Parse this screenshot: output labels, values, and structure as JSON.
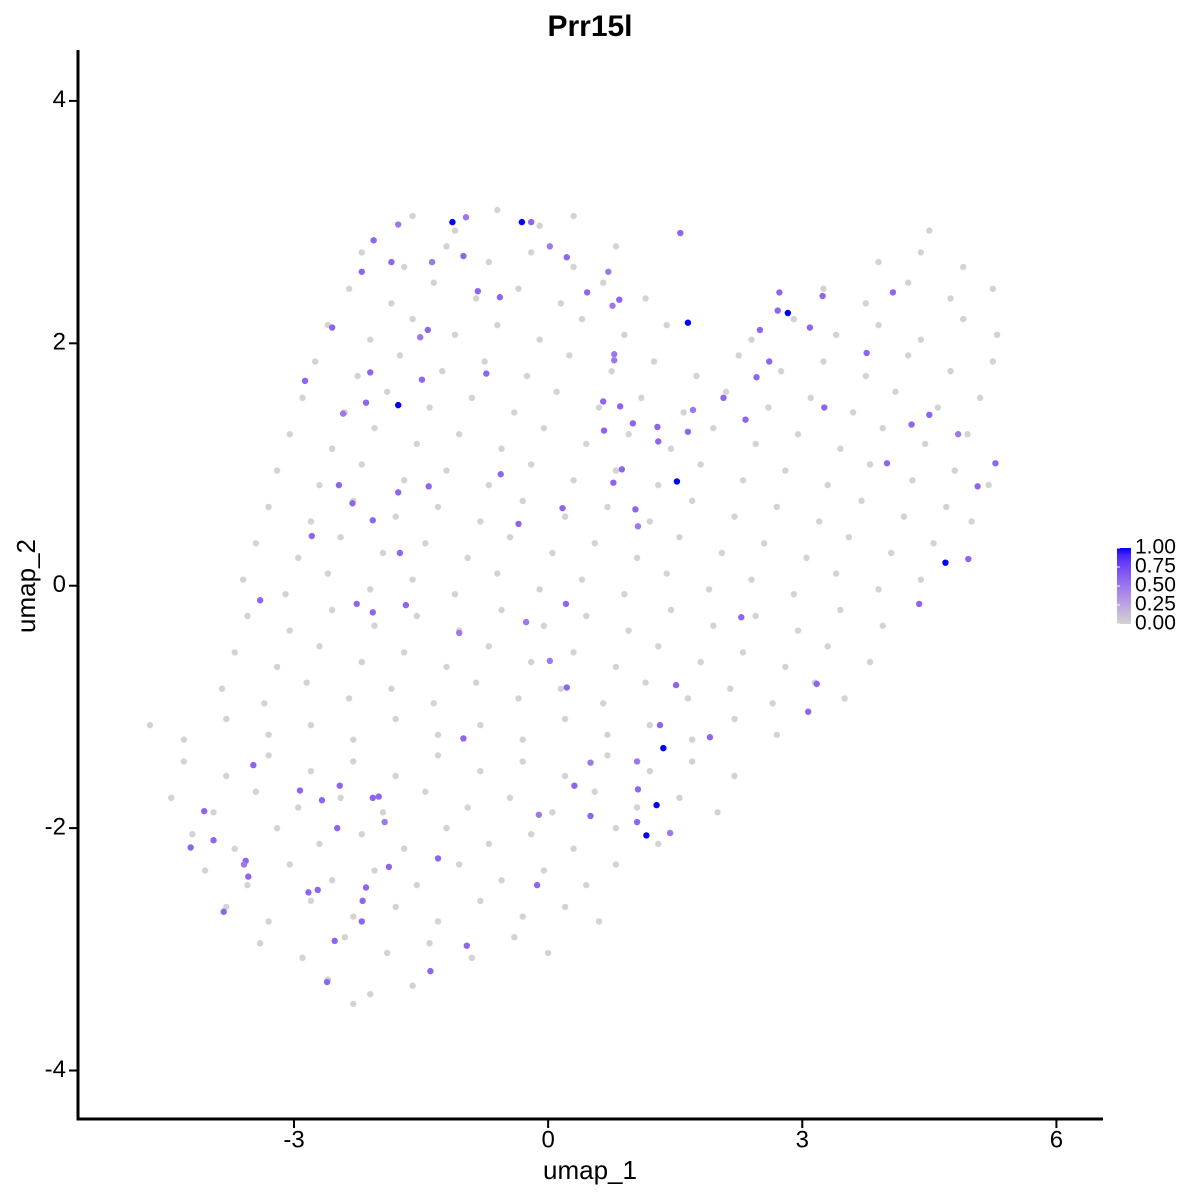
{
  "chart_data": {
    "type": "scatter",
    "title": "Prr15l",
    "x_label": "umap_1",
    "y_label": "umap_2",
    "xlim": [
      -5.55,
      6.55
    ],
    "ylim": [
      -4.4,
      4.42
    ],
    "xticks": [
      -3,
      0,
      3,
      6
    ],
    "yticks": [
      -4,
      -2,
      0,
      2,
      4
    ],
    "grid": false,
    "color_low": "#d3d3d3",
    "color_high": "#0000ff",
    "color_lim": [
      0,
      1
    ],
    "color_ticks": [
      {
        "value": 0,
        "label": "0.00"
      },
      {
        "value": 0.25,
        "label": "0.25"
      },
      {
        "value": 0.5,
        "label": "0.50"
      },
      {
        "value": 0.75,
        "label": "0.75"
      },
      {
        "value": 1,
        "label": "1.00"
      }
    ],
    "x": [
      -1.6,
      -1.1,
      -0.6,
      -0.1,
      0.3,
      4.5,
      -2.2,
      -1.7,
      -1.2,
      -0.7,
      -0.2,
      0.3,
      0.8,
      3.9,
      4.4,
      4.9,
      -2.35,
      -1.85,
      -1.35,
      -0.85,
      -0.35,
      0.15,
      0.65,
      1.15,
      3.25,
      3.75,
      4.25,
      4.75,
      5.25,
      -2.6,
      -2.1,
      -1.6,
      -1.1,
      -0.6,
      -0.1,
      0.4,
      0.9,
      1.4,
      2.4,
      2.9,
      3.4,
      3.9,
      4.4,
      4.9,
      5.3,
      -2.75,
      -2.25,
      -1.75,
      -1.25,
      -0.75,
      -0.25,
      0.25,
      0.75,
      1.25,
      1.75,
      2.25,
      2.75,
      3.25,
      3.75,
      4.25,
      4.75,
      5.25,
      -2.9,
      -2.4,
      -1.9,
      -1.4,
      -0.9,
      -0.4,
      0.1,
      0.6,
      1.1,
      1.6,
      2.1,
      2.6,
      3.1,
      3.6,
      4.1,
      4.6,
      5.1,
      -3.05,
      -2.55,
      -2.05,
      -1.55,
      -1.05,
      -0.55,
      -0.05,
      0.45,
      0.95,
      1.45,
      1.95,
      2.45,
      2.95,
      3.45,
      3.95,
      4.45,
      4.95,
      -3.2,
      -2.7,
      -2.2,
      -1.7,
      -1.2,
      -0.7,
      -0.2,
      0.3,
      0.8,
      1.3,
      1.8,
      2.3,
      2.8,
      3.3,
      3.8,
      4.3,
      4.8,
      5.2,
      -3.3,
      -2.8,
      -2.3,
      -1.8,
      -1.3,
      -0.8,
      -0.3,
      0.2,
      0.7,
      1.2,
      1.7,
      2.2,
      2.7,
      3.2,
      3.7,
      4.2,
      4.7,
      5.0,
      -3.45,
      -2.95,
      -2.45,
      -1.95,
      -1.45,
      -0.95,
      -0.45,
      0.05,
      0.55,
      1.05,
      1.55,
      2.05,
      2.55,
      3.05,
      3.55,
      4.05,
      4.55,
      -3.6,
      -3.1,
      -2.6,
      -2.1,
      -1.6,
      -1.1,
      -0.6,
      -0.1,
      0.4,
      0.9,
      1.4,
      1.9,
      2.4,
      2.9,
      3.4,
      3.9,
      4.4,
      -3.55,
      -3.05,
      -2.55,
      -2.05,
      -1.55,
      -1.05,
      -0.55,
      -0.05,
      0.45,
      0.95,
      1.45,
      1.95,
      2.45,
      2.95,
      3.45,
      3.95,
      -3.7,
      -3.2,
      -2.7,
      -2.2,
      -1.7,
      -1.2,
      -0.7,
      -0.2,
      0.3,
      0.8,
      1.3,
      1.8,
      2.3,
      2.8,
      3.3,
      3.8,
      -3.85,
      -3.35,
      -2.85,
      -2.35,
      -1.85,
      -1.35,
      -0.85,
      -0.35,
      0.15,
      0.65,
      1.15,
      1.65,
      2.15,
      2.65,
      3.15,
      3.5,
      -4.7,
      -4.3,
      -3.8,
      -3.3,
      -2.8,
      -2.3,
      -1.8,
      -1.3,
      -0.8,
      -0.3,
      0.2,
      0.7,
      1.2,
      1.7,
      2.2,
      2.7,
      -4.3,
      -3.8,
      -3.3,
      -2.8,
      -2.3,
      -1.8,
      -1.3,
      -0.8,
      -0.3,
      0.2,
      0.7,
      1.2,
      1.7,
      2.2,
      -4.45,
      -3.95,
      -3.45,
      -2.95,
      -2.45,
      -1.95,
      -1.45,
      -0.95,
      -0.45,
      0.05,
      0.55,
      1.05,
      1.55,
      2.0,
      -4.2,
      -3.7,
      -3.2,
      -2.7,
      -2.2,
      -1.7,
      -1.2,
      -0.7,
      -0.2,
      0.3,
      0.8,
      1.3,
      -4.05,
      -3.55,
      -3.05,
      -2.55,
      -2.05,
      -1.55,
      -1.05,
      -0.55,
      -0.05,
      0.45,
      0.8,
      -3.8,
      -3.3,
      -2.8,
      -2.3,
      -1.8,
      -1.3,
      -0.8,
      -0.3,
      0.2,
      0.6,
      -3.4,
      -2.9,
      -2.4,
      -1.9,
      -1.4,
      -0.9,
      -0.4,
      0.0,
      -2.6,
      -2.3,
      -2.1,
      -1.6,
      -1.13,
      -0.31,
      -0.2,
      -0.97,
      -1.77,
      -2.06,
      1.56,
      0.02,
      0.22,
      -1.0,
      -1.37,
      -1.85,
      -2.2,
      0.71,
      -0.83,
      -0.57,
      0.46,
      0.84,
      0.76,
      1.65,
      2.83,
      2.73,
      2.71,
      3.24,
      3.09,
      2.5,
      4.07,
      -2.55,
      -1.42,
      -1.51,
      0.78,
      0.78,
      -2.87,
      -2.1,
      -1.49,
      -0.73,
      -1.77,
      -2.15,
      -2.42,
      0.65,
      0.85,
      0.66,
      1.0,
      1.29,
      1.3,
      1.65,
      1.71,
      2.07,
      2.46,
      2.61,
      2.33,
      3.26,
      3.76,
      4.5,
      4.29,
      4.84,
      4.0,
      5.28,
      5.07,
      1.52,
      0.87,
      0.77,
      -0.56,
      1.03,
      1.06,
      0.17,
      -0.35,
      -2.47,
      -1.41,
      -1.77,
      -2.31,
      -2.07,
      -2.79,
      -1.75,
      4.69,
      4.96,
      4.38,
      -3.4,
      -2.26,
      -1.68,
      -2.07,
      0.21,
      2.28,
      -0.26,
      -1.05,
      0.02,
      0.22,
      1.51,
      3.17,
      3.07,
      1.32,
      -1.0,
      1.36,
      1.91,
      -3.48,
      1.05,
      0.5,
      0.31,
      -2.46,
      -2.93,
      1.06,
      1.28,
      -2.07,
      -2.0,
      -2.67,
      -4.06,
      -0.11,
      0.5,
      -1.93,
      1.05,
      1.44,
      -2.49,
      1.16,
      -3.95,
      -4.22,
      -1.3,
      -3.57,
      -3.59,
      -1.88,
      -3.54,
      -0.13,
      -2.15,
      -2.72,
      -2.83,
      -2.19,
      -3.83,
      -2.2,
      -0.96,
      -2.52,
      -1.39,
      -2.61
    ],
    "y": [
      3.05,
      2.93,
      3.1,
      2.97,
      3.05,
      2.93,
      2.75,
      2.63,
      2.8,
      2.67,
      2.75,
      2.63,
      2.8,
      2.67,
      2.75,
      2.63,
      2.45,
      2.33,
      2.5,
      2.37,
      2.45,
      2.33,
      2.5,
      2.37,
      2.45,
      2.33,
      2.5,
      2.37,
      2.45,
      2.15,
      2.03,
      2.2,
      2.07,
      2.15,
      2.03,
      2.2,
      2.07,
      2.15,
      2.03,
      2.2,
      2.07,
      2.15,
      2.03,
      2.2,
      2.07,
      1.85,
      1.73,
      1.9,
      1.77,
      1.85,
      1.73,
      1.9,
      1.77,
      1.85,
      1.73,
      1.9,
      1.77,
      1.85,
      1.73,
      1.9,
      1.77,
      1.85,
      1.55,
      1.43,
      1.6,
      1.47,
      1.55,
      1.43,
      1.6,
      1.47,
      1.55,
      1.43,
      1.6,
      1.47,
      1.55,
      1.43,
      1.6,
      1.47,
      1.55,
      1.25,
      1.13,
      1.3,
      1.17,
      1.25,
      1.13,
      1.3,
      1.17,
      1.25,
      1.13,
      1.3,
      1.17,
      1.25,
      1.13,
      1.3,
      1.17,
      1.25,
      0.95,
      0.83,
      1.0,
      0.87,
      0.95,
      0.83,
      1.0,
      0.87,
      0.95,
      0.83,
      1.0,
      0.87,
      0.95,
      0.83,
      1.0,
      0.87,
      0.95,
      0.83,
      0.65,
      0.53,
      0.7,
      0.57,
      0.65,
      0.53,
      0.7,
      0.57,
      0.65,
      0.53,
      0.7,
      0.57,
      0.65,
      0.53,
      0.7,
      0.57,
      0.65,
      0.53,
      0.35,
      0.23,
      0.4,
      0.27,
      0.35,
      0.23,
      0.4,
      0.27,
      0.35,
      0.23,
      0.4,
      0.27,
      0.35,
      0.23,
      0.4,
      0.27,
      0.35,
      0.05,
      -0.07,
      0.1,
      -0.03,
      0.05,
      -0.07,
      0.1,
      -0.03,
      0.05,
      -0.07,
      0.1,
      -0.03,
      0.05,
      -0.07,
      0.1,
      -0.03,
      0.05,
      -0.25,
      -0.37,
      -0.2,
      -0.33,
      -0.25,
      -0.37,
      -0.2,
      -0.33,
      -0.25,
      -0.37,
      -0.2,
      -0.33,
      -0.25,
      -0.37,
      -0.2,
      -0.33,
      -0.55,
      -0.67,
      -0.5,
      -0.63,
      -0.55,
      -0.67,
      -0.5,
      -0.63,
      -0.55,
      -0.67,
      -0.5,
      -0.63,
      -0.55,
      -0.67,
      -0.5,
      -0.63,
      -0.85,
      -0.97,
      -0.8,
      -0.93,
      -0.85,
      -0.97,
      -0.8,
      -0.93,
      -0.85,
      -0.97,
      -0.8,
      -0.93,
      -0.85,
      -0.97,
      -0.8,
      -0.93,
      -1.15,
      -1.27,
      -1.1,
      -1.23,
      -1.15,
      -1.27,
      -1.1,
      -1.23,
      -1.15,
      -1.27,
      -1.1,
      -1.23,
      -1.15,
      -1.27,
      -1.1,
      -1.23,
      -1.45,
      -1.57,
      -1.4,
      -1.53,
      -1.45,
      -1.57,
      -1.4,
      -1.53,
      -1.45,
      -1.57,
      -1.4,
      -1.53,
      -1.45,
      -1.57,
      -1.75,
      -1.87,
      -1.7,
      -1.83,
      -1.75,
      -1.87,
      -1.7,
      -1.83,
      -1.75,
      -1.87,
      -1.7,
      -1.83,
      -1.75,
      -1.87,
      -2.05,
      -2.17,
      -2.0,
      -2.13,
      -2.05,
      -2.17,
      -2.0,
      -2.13,
      -2.05,
      -2.17,
      -2.0,
      -2.13,
      -2.35,
      -2.47,
      -2.3,
      -2.43,
      -2.35,
      -2.47,
      -2.3,
      -2.43,
      -2.35,
      -2.47,
      -2.3,
      -2.65,
      -2.77,
      -2.6,
      -2.73,
      -2.65,
      -2.77,
      -2.6,
      -2.73,
      -2.65,
      -2.77,
      -2.95,
      -3.07,
      -2.9,
      -3.03,
      -2.95,
      -3.07,
      -2.9,
      -3.03,
      -3.25,
      -3.45,
      -3.37,
      -3.3,
      3.0,
      3.0,
      3.0,
      3.04,
      2.98,
      2.85,
      2.91,
      2.8,
      2.71,
      2.72,
      2.67,
      2.67,
      2.59,
      2.59,
      2.43,
      2.38,
      2.42,
      2.36,
      2.31,
      2.17,
      2.25,
      2.42,
      2.27,
      2.39,
      2.13,
      2.11,
      2.42,
      2.13,
      2.11,
      2.05,
      1.91,
      1.86,
      1.69,
      1.76,
      1.7,
      1.75,
      1.49,
      1.51,
      1.42,
      1.52,
      1.48,
      1.28,
      1.34,
      1.31,
      1.19,
      1.27,
      1.45,
      1.55,
      1.72,
      1.85,
      1.37,
      1.47,
      1.92,
      1.41,
      1.33,
      1.25,
      1.01,
      1.01,
      0.82,
      0.86,
      0.96,
      0.85,
      0.92,
      0.63,
      0.49,
      0.64,
      0.51,
      0.83,
      0.82,
      0.77,
      0.68,
      0.54,
      0.41,
      0.27,
      0.19,
      0.22,
      -0.15,
      -0.12,
      -0.15,
      -0.16,
      -0.22,
      -0.15,
      -0.26,
      -0.3,
      -0.39,
      -0.62,
      -0.84,
      -0.82,
      -0.81,
      -1.04,
      -1.15,
      -1.26,
      -1.34,
      -1.25,
      -1.48,
      -1.45,
      -1.46,
      -1.65,
      -1.65,
      -1.69,
      -1.68,
      -1.81,
      -1.75,
      -1.74,
      -1.77,
      -1.86,
      -1.89,
      -1.9,
      -1.95,
      -1.95,
      -2.04,
      -2.0,
      -2.06,
      -2.1,
      -2.16,
      -2.25,
      -2.27,
      -2.3,
      -2.32,
      -2.4,
      -2.47,
      -2.49,
      -2.51,
      -2.53,
      -2.6,
      -2.69,
      -2.77,
      -2.97,
      -2.93,
      -3.18,
      -3.27
    ],
    "expression": [
      0,
      0,
      0,
      0,
      0,
      0,
      0,
      0,
      0,
      0,
      0,
      0,
      0,
      0,
      0,
      0,
      0,
      0,
      0,
      0,
      0,
      0,
      0,
      0,
      0,
      0,
      0,
      0,
      0,
      0,
      0,
      0,
      0,
      0,
      0,
      0,
      0,
      0,
      0,
      0,
      0,
      0,
      0,
      0,
      0,
      0,
      0,
      0,
      0,
      0,
      0,
      0,
      0,
      0,
      0,
      0,
      0,
      0,
      0,
      0,
      0,
      0,
      0,
      0,
      0,
      0,
      0,
      0,
      0,
      0,
      0,
      0,
      0,
      0,
      0,
      0,
      0,
      0,
      0,
      0,
      0,
      0,
      0,
      0,
      0,
      0,
      0,
      0,
      0,
      0,
      0,
      0,
      0,
      0,
      0,
      0,
      0,
      0,
      0,
      0,
      0,
      0,
      0,
      0,
      0,
      0,
      0,
      0,
      0,
      0,
      0,
      0,
      0,
      0,
      0,
      0,
      0,
      0,
      0,
      0,
      0,
      0,
      0,
      0,
      0,
      0,
      0,
      0,
      0,
      0,
      0,
      0,
      0,
      0,
      0,
      0,
      0,
      0,
      0,
      0,
      0,
      0,
      0,
      0,
      0,
      0,
      0,
      0,
      0,
      0,
      0,
      0,
      0,
      0,
      0,
      0,
      0,
      0,
      0,
      0,
      0,
      0,
      0,
      0,
      0,
      0,
      0,
      0,
      0,
      0,
      0,
      0,
      0,
      0,
      0,
      0,
      0,
      0,
      0,
      0,
      0,
      0,
      0,
      0,
      0,
      0,
      0,
      0,
      0,
      0,
      0,
      0,
      0,
      0,
      0,
      0,
      0,
      0,
      0,
      0,
      0,
      0,
      0,
      0,
      0,
      0,
      0,
      0,
      0,
      0,
      0,
      0,
      0,
      0,
      0,
      0,
      0,
      0,
      0,
      0,
      0,
      0,
      0,
      0,
      0,
      0,
      0,
      0,
      0,
      0,
      0,
      0,
      0,
      0,
      0,
      0,
      0,
      0,
      0,
      0,
      0,
      0,
      0,
      0,
      0,
      0,
      0,
      0,
      0,
      0,
      0,
      0,
      0,
      0,
      0,
      0,
      0,
      0,
      0,
      0,
      0,
      0,
      0,
      0,
      0,
      0,
      0,
      0,
      0,
      0,
      0,
      0,
      0,
      0,
      0,
      0,
      0,
      0,
      0,
      0,
      0,
      0,
      0,
      0,
      0,
      0,
      0,
      0,
      0,
      0,
      0,
      0,
      0,
      0,
      0,
      0,
      0,
      0,
      0,
      0,
      0,
      0,
      0,
      1,
      1,
      0.6,
      0.5,
      0.5,
      0.6,
      0.6,
      0.5,
      0.6,
      0.6,
      0.5,
      0.6,
      0.6,
      0.5,
      0.6,
      0.6,
      0.6,
      0.6,
      0.5,
      1,
      1,
      0.6,
      0.6,
      0.6,
      0.6,
      0.6,
      0.6,
      0.6,
      0.6,
      0.5,
      0.5,
      0.5,
      0.6,
      0.6,
      0.6,
      0.6,
      1,
      0.6,
      0.5,
      0.6,
      0.6,
      0.6,
      0.6,
      0.6,
      0.6,
      0.6,
      0.5,
      0.6,
      0.6,
      0.6,
      0.6,
      0.6,
      0.6,
      0.6,
      0.6,
      0.5,
      0.6,
      0.6,
      0.6,
      1,
      0.6,
      0.6,
      0.6,
      0.6,
      0.5,
      0.6,
      0.6,
      0.6,
      0.6,
      0.6,
      0.6,
      0.6,
      0.6,
      0.6,
      1,
      0.6,
      0.6,
      0.6,
      0.6,
      0.6,
      0.6,
      0.6,
      0.6,
      0.5,
      0.5,
      0.5,
      0.6,
      0.6,
      0.6,
      0.6,
      0.6,
      0.6,
      1,
      0.6,
      0.6,
      0.5,
      0.5,
      0.6,
      0.6,
      0.6,
      0.6,
      1,
      0.6,
      0.6,
      0.6,
      0.6,
      0.5,
      0.6,
      0.5,
      0.6,
      0.5,
      0.6,
      1,
      0.6,
      0.6,
      0.6,
      0.6,
      0.5,
      0.6,
      0.6,
      0.6,
      0.6,
      0.6,
      0.6,
      0.6,
      0.6,
      0.6,
      0.6,
      0.6,
      0.6,
      0.6
    ]
  }
}
